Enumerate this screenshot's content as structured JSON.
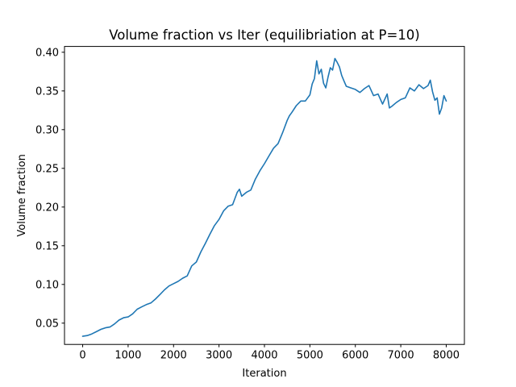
{
  "chart_data": {
    "type": "line",
    "title": "Volume fraction vs Iter (equilibriation at P=10)",
    "xlabel": "Iteration",
    "ylabel": "Volume fraction",
    "xlim": [
      -400,
      8400
    ],
    "ylim": [
      0.0225,
      0.4075
    ],
    "xticks": [
      0,
      1000,
      2000,
      3000,
      4000,
      5000,
      6000,
      7000,
      8000
    ],
    "xtick_labels": [
      "0",
      "1000",
      "2000",
      "3000",
      "4000",
      "5000",
      "6000",
      "7000",
      "8000"
    ],
    "yticks": [
      0.05,
      0.1,
      0.15,
      0.2,
      0.25,
      0.3,
      0.35,
      0.4
    ],
    "ytick_labels": [
      "0.05",
      "0.10",
      "0.15",
      "0.20",
      "0.25",
      "0.30",
      "0.35",
      "0.40"
    ],
    "grid": false,
    "series": [
      {
        "color": "#1f77b4",
        "x": [
          0,
          100,
          200,
          300,
          400,
          500,
          600,
          700,
          800,
          900,
          1000,
          1100,
          1200,
          1300,
          1400,
          1500,
          1600,
          1700,
          1800,
          1900,
          2000,
          2100,
          2200,
          2300,
          2400,
          2500,
          2600,
          2700,
          2800,
          2900,
          3000,
          3100,
          3200,
          3300,
          3400,
          3450,
          3500,
          3600,
          3700,
          3800,
          3900,
          4000,
          4100,
          4200,
          4300,
          4400,
          4500,
          4550,
          4600,
          4700,
          4800,
          4900,
          5000,
          5050,
          5100,
          5150,
          5200,
          5250,
          5300,
          5350,
          5400,
          5450,
          5500,
          5550,
          5600,
          5650,
          5700,
          5750,
          5800,
          5900,
          6000,
          6100,
          6200,
          6300,
          6400,
          6500,
          6600,
          6700,
          6750,
          6800,
          6900,
          7000,
          7100,
          7200,
          7300,
          7400,
          7500,
          7600,
          7650,
          7700,
          7750,
          7800,
          7850,
          7900,
          7950,
          8000
        ],
        "y": [
          0.033,
          0.034,
          0.036,
          0.039,
          0.042,
          0.044,
          0.045,
          0.049,
          0.054,
          0.057,
          0.058,
          0.062,
          0.068,
          0.071,
          0.074,
          0.076,
          0.081,
          0.087,
          0.093,
          0.098,
          0.101,
          0.104,
          0.108,
          0.111,
          0.124,
          0.129,
          0.142,
          0.153,
          0.165,
          0.176,
          0.184,
          0.195,
          0.201,
          0.203,
          0.219,
          0.223,
          0.214,
          0.219,
          0.222,
          0.236,
          0.247,
          0.256,
          0.266,
          0.276,
          0.282,
          0.296,
          0.312,
          0.318,
          0.322,
          0.331,
          0.337,
          0.337,
          0.345,
          0.359,
          0.366,
          0.389,
          0.372,
          0.378,
          0.36,
          0.354,
          0.368,
          0.38,
          0.377,
          0.392,
          0.387,
          0.381,
          0.37,
          0.363,
          0.356,
          0.354,
          0.352,
          0.348,
          0.353,
          0.357,
          0.344,
          0.346,
          0.333,
          0.346,
          0.328,
          0.33,
          0.335,
          0.339,
          0.341,
          0.354,
          0.35,
          0.358,
          0.353,
          0.357,
          0.364,
          0.349,
          0.338,
          0.341,
          0.32,
          0.328,
          0.344,
          0.337
        ]
      }
    ]
  }
}
